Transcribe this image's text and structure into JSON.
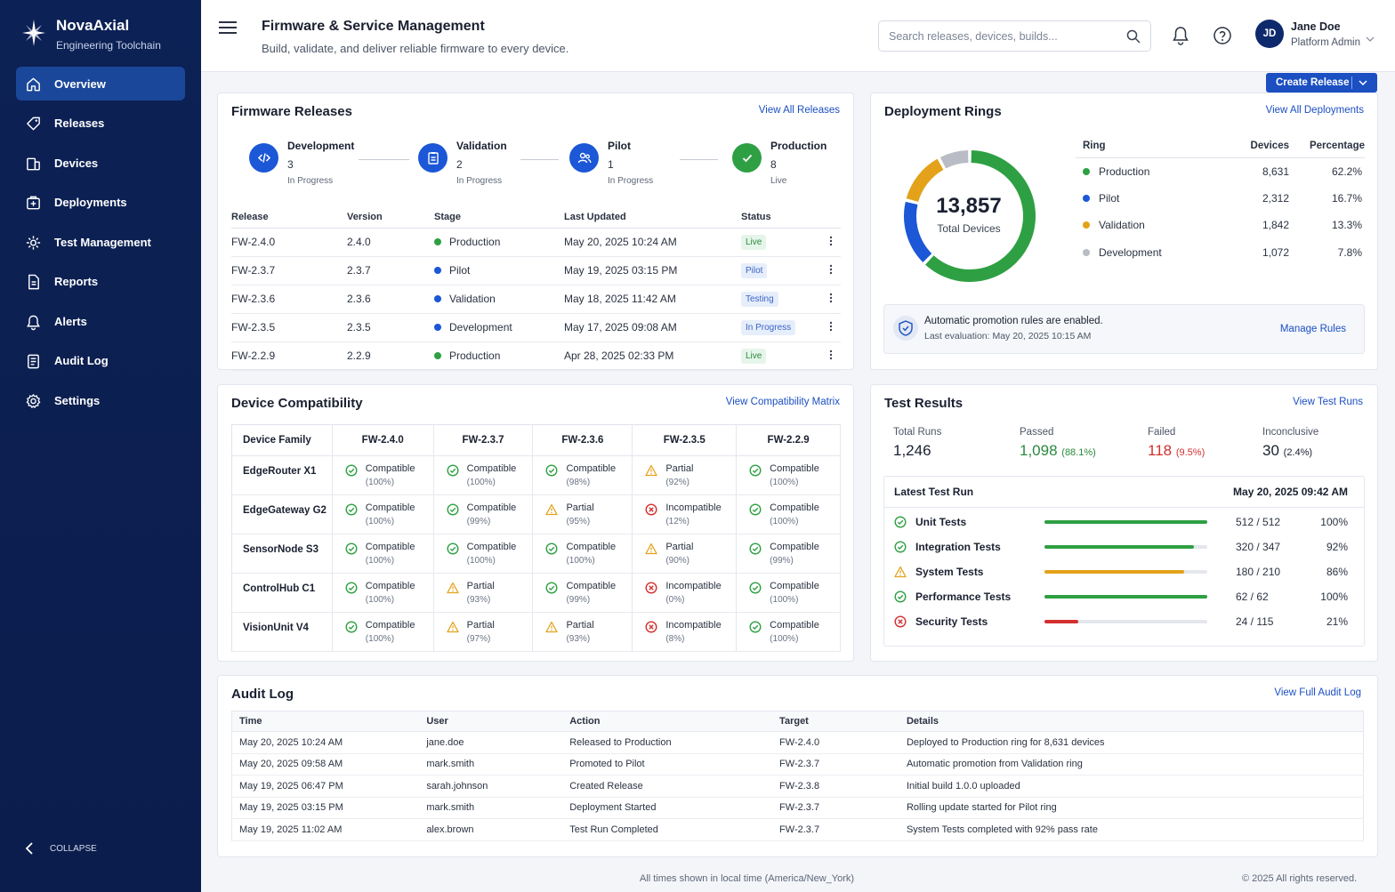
{
  "app": {
    "name": "NovaAxial",
    "subtitle": "Engineering Toolchain"
  },
  "nav": [
    {
      "label": "Overview",
      "icon": "home-icon",
      "active": true
    },
    {
      "label": "Releases",
      "icon": "tag-icon"
    },
    {
      "label": "Devices",
      "icon": "devices-icon"
    },
    {
      "label": "Deployments",
      "icon": "deployments-icon"
    },
    {
      "label": "Test Management",
      "icon": "test-icon"
    },
    {
      "label": "Reports",
      "icon": "report-icon"
    },
    {
      "label": "Alerts",
      "icon": "bell-icon"
    },
    {
      "label": "Audit Log",
      "icon": "audit-icon"
    },
    {
      "label": "Settings",
      "icon": "gear-icon"
    }
  ],
  "collapse_label": "COLLAPSE",
  "header": {
    "title": "Firmware & Service Management",
    "subtitle": "Build, validate, and deliver reliable firmware to every device.",
    "search_placeholder": "Search releases, devices, builds..."
  },
  "user": {
    "initials": "JD",
    "name": "Jane Doe",
    "role": "Platform Admin"
  },
  "create_release_label": "Create Release",
  "releases": {
    "title": "Firmware Releases",
    "link": "View All Releases",
    "pipeline": [
      {
        "name": "Development",
        "count": "3",
        "status": "In Progress",
        "color": "#1b57d6"
      },
      {
        "name": "Validation",
        "count": "2",
        "status": "In Progress",
        "color": "#1b57d6"
      },
      {
        "name": "Pilot",
        "count": "1",
        "status": "In Progress",
        "color": "#1b57d6"
      },
      {
        "name": "Production",
        "count": "8",
        "status": "Live",
        "color": "#2ea043"
      }
    ],
    "headers": [
      "Release",
      "Version",
      "Stage",
      "Last Updated",
      "Status"
    ],
    "rows": [
      {
        "release": "FW-2.4.0",
        "version": "2.4.0",
        "stage": "Production",
        "stage_color": "#2ea043",
        "updated": "May 20, 2025 10:24 AM",
        "status": "Live",
        "pill_bg": "#e6f5ea",
        "pill_fg": "#2a8a3e"
      },
      {
        "release": "FW-2.3.7",
        "version": "2.3.7",
        "stage": "Pilot",
        "stage_color": "#1b57d6",
        "updated": "May 19, 2025 03:15 PM",
        "status": "Pilot",
        "pill_bg": "#e6eefb",
        "pill_fg": "#3b64c4"
      },
      {
        "release": "FW-2.3.6",
        "version": "2.3.6",
        "stage": "Validation",
        "stage_color": "#1b57d6",
        "updated": "May 18, 2025 11:42 AM",
        "status": "Testing",
        "pill_bg": "#e6eefb",
        "pill_fg": "#3b64c4"
      },
      {
        "release": "FW-2.3.5",
        "version": "2.3.5",
        "stage": "Development",
        "stage_color": "#1b57d6",
        "updated": "May 17, 2025 09:08 AM",
        "status": "In Progress",
        "pill_bg": "#e6eefb",
        "pill_fg": "#3b64c4"
      },
      {
        "release": "FW-2.2.9",
        "version": "2.2.9",
        "stage": "Production",
        "stage_color": "#2ea043",
        "updated": "Apr 28, 2025 02:33 PM",
        "status": "Live",
        "pill_bg": "#e6f5ea",
        "pill_fg": "#2a8a3e"
      }
    ]
  },
  "rings": {
    "title": "Deployment Rings",
    "link": "View All Deployments",
    "total": "13,857",
    "total_label": "Total Devices",
    "headers": [
      "Ring",
      "Devices",
      "Percentage"
    ],
    "rows": [
      {
        "ring": "Production",
        "devices": "8,631",
        "pct": "62.2%",
        "share": 62.2,
        "color": "#2ea043"
      },
      {
        "ring": "Pilot",
        "devices": "2,312",
        "pct": "16.7%",
        "share": 16.7,
        "color": "#1b57d6"
      },
      {
        "ring": "Validation",
        "devices": "1,842",
        "pct": "13.3%",
        "share": 13.3,
        "color": "#e3a21a"
      },
      {
        "ring": "Development",
        "devices": "1,072",
        "pct": "7.8%",
        "share": 7.8,
        "color": "#b9bcc4"
      }
    ],
    "promo_title": "Automatic promotion rules are enabled.",
    "promo_sub": "Last evaluation: May 20, 2025 10:15 AM",
    "promo_link": "Manage Rules"
  },
  "compat": {
    "title": "Device Compatibility",
    "link": "View Compatibility Matrix",
    "family_header": "Device Family",
    "versions": [
      "FW-2.4.0",
      "FW-2.3.7",
      "FW-2.3.6",
      "FW-2.3.5",
      "FW-2.2.9"
    ],
    "rows": [
      {
        "family": "EdgeRouter X1",
        "cells": [
          {
            "s": "ok",
            "label": "Compatible",
            "pct": "(100%)"
          },
          {
            "s": "ok",
            "label": "Compatible",
            "pct": "(100%)"
          },
          {
            "s": "ok",
            "label": "Compatible",
            "pct": "(98%)"
          },
          {
            "s": "warn",
            "label": "Partial",
            "pct": "(92%)"
          },
          {
            "s": "ok",
            "label": "Compatible",
            "pct": "(100%)"
          }
        ]
      },
      {
        "family": "EdgeGateway G2",
        "cells": [
          {
            "s": "ok",
            "label": "Compatible",
            "pct": "(100%)"
          },
          {
            "s": "ok",
            "label": "Compatible",
            "pct": "(99%)"
          },
          {
            "s": "warn",
            "label": "Partial",
            "pct": "(95%)"
          },
          {
            "s": "bad",
            "label": "Incompatible",
            "pct": "(12%)"
          },
          {
            "s": "ok",
            "label": "Compatible",
            "pct": "(100%)"
          }
        ]
      },
      {
        "family": "SensorNode S3",
        "cells": [
          {
            "s": "ok",
            "label": "Compatible",
            "pct": "(100%)"
          },
          {
            "s": "ok",
            "label": "Compatible",
            "pct": "(100%)"
          },
          {
            "s": "ok",
            "label": "Compatible",
            "pct": "(100%)"
          },
          {
            "s": "warn",
            "label": "Partial",
            "pct": "(90%)"
          },
          {
            "s": "ok",
            "label": "Compatible",
            "pct": "(99%)"
          }
        ]
      },
      {
        "family": "ControlHub C1",
        "cells": [
          {
            "s": "ok",
            "label": "Compatible",
            "pct": "(100%)"
          },
          {
            "s": "warn",
            "label": "Partial",
            "pct": "(93%)"
          },
          {
            "s": "ok",
            "label": "Compatible",
            "pct": "(99%)"
          },
          {
            "s": "bad",
            "label": "Incompatible",
            "pct": "(0%)"
          },
          {
            "s": "ok",
            "label": "Compatible",
            "pct": "(100%)"
          }
        ]
      },
      {
        "family": "VisionUnit V4",
        "cells": [
          {
            "s": "ok",
            "label": "Compatible",
            "pct": "(100%)"
          },
          {
            "s": "warn",
            "label": "Partial",
            "pct": "(97%)"
          },
          {
            "s": "warn",
            "label": "Partial",
            "pct": "(93%)"
          },
          {
            "s": "bad",
            "label": "Incompatible",
            "pct": "(8%)"
          },
          {
            "s": "ok",
            "label": "Compatible",
            "pct": "(100%)"
          }
        ]
      }
    ]
  },
  "tests": {
    "title": "Test Results",
    "link": "View Test Runs",
    "summary": [
      {
        "label": "Total Runs",
        "value": "1,246",
        "pct": "",
        "color": "#1a2030"
      },
      {
        "label": "Passed",
        "value": "1,098",
        "pct": "(88.1%)",
        "color": "#2a8a3e"
      },
      {
        "label": "Failed",
        "value": "118",
        "pct": "(9.5%)",
        "color": "#d32f2f"
      },
      {
        "label": "Inconclusive",
        "value": "30",
        "pct": "(2.4%)",
        "color": "#1a2030"
      }
    ],
    "latest_title": "Latest Test Run",
    "latest_date": "May 20, 2025 09:42 AM",
    "rows": [
      {
        "name": "Unit Tests",
        "count": "512 / 512",
        "pct": "100%",
        "ratio": 1.0,
        "s": "ok",
        "color": "#2ea043"
      },
      {
        "name": "Integration Tests",
        "count": "320 / 347",
        "pct": "92%",
        "ratio": 0.92,
        "s": "ok",
        "color": "#2ea043"
      },
      {
        "name": "System Tests",
        "count": "180 / 210",
        "pct": "86%",
        "ratio": 0.86,
        "s": "warn",
        "color": "#e3a21a"
      },
      {
        "name": "Performance Tests",
        "count": "62 / 62",
        "pct": "100%",
        "ratio": 1.0,
        "s": "ok",
        "color": "#2ea043"
      },
      {
        "name": "Security Tests",
        "count": "24 / 115",
        "pct": "21%",
        "ratio": 0.21,
        "s": "bad",
        "color": "#d32f2f"
      }
    ]
  },
  "audit": {
    "title": "Audit Log",
    "link": "View Full Audit Log",
    "headers": [
      "Time",
      "User",
      "Action",
      "Target",
      "Details"
    ],
    "rows": [
      [
        "May 20, 2025 10:24 AM",
        "jane.doe",
        "Released to Production",
        "FW-2.4.0",
        "Deployed to Production ring for 8,631 devices"
      ],
      [
        "May 20, 2025 09:58 AM",
        "mark.smith",
        "Promoted to Pilot",
        "FW-2.3.7",
        "Automatic promotion from Validation ring"
      ],
      [
        "May 19, 2025 06:47 PM",
        "sarah.johnson",
        "Created Release",
        "FW-2.3.8",
        "Initial build 1.0.0 uploaded"
      ],
      [
        "May 19, 2025 03:15 PM",
        "mark.smith",
        "Deployment Started",
        "FW-2.3.7",
        "Rolling update started for Pilot ring"
      ],
      [
        "May 19, 2025 11:02 AM",
        "alex.brown",
        "Test Run Completed",
        "FW-2.3.7",
        "System Tests completed with 92% pass rate"
      ]
    ]
  },
  "footer": {
    "left": "All times shown in local time (America/New_York)",
    "right": "© 2025 All rights reserved."
  }
}
